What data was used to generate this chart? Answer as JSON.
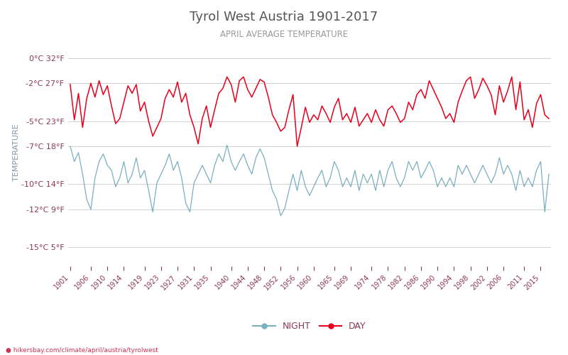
{
  "title": "Tyrol West Austria 1901-2017",
  "subtitle": "APRIL AVERAGE TEMPERATURE",
  "ylabel": "TEMPERATURE",
  "watermark": "hikersbay.com/climate/april/austria/tyrolwest",
  "year_start": 1901,
  "year_end": 2017,
  "ylim": [
    -16.5,
    1.5
  ],
  "yticks_c": [
    0,
    -2,
    -5,
    -7,
    -10,
    -12,
    -15
  ],
  "yticks_f": [
    32,
    27,
    23,
    18,
    14,
    9,
    5
  ],
  "xticks": [
    1901,
    1906,
    1910,
    1914,
    1919,
    1923,
    1927,
    1931,
    1935,
    1940,
    1944,
    1948,
    1952,
    1956,
    1960,
    1965,
    1969,
    1974,
    1978,
    1982,
    1986,
    1990,
    1994,
    1998,
    2002,
    2006,
    2011,
    2015
  ],
  "day_color": "#e8001c",
  "night_color": "#7aafc0",
  "grid_color": "#d0d0d0",
  "title_color": "#555555",
  "subtitle_color": "#999999",
  "label_color": "#8b3a52",
  "bg_color": "#ffffff",
  "day_data": [
    -2.1,
    -4.9,
    -2.8,
    -5.5,
    -3.2,
    -2.0,
    -3.1,
    -1.8,
    -2.9,
    -2.2,
    -3.8,
    -5.2,
    -4.8,
    -3.5,
    -2.2,
    -2.8,
    -2.1,
    -4.2,
    -3.5,
    -5.0,
    -6.2,
    -5.5,
    -4.8,
    -3.2,
    -2.5,
    -3.1,
    -1.9,
    -3.5,
    -2.8,
    -4.5,
    -5.5,
    -6.8,
    -4.8,
    -3.8,
    -5.5,
    -4.1,
    -2.8,
    -2.4,
    -1.5,
    -2.1,
    -3.5,
    -1.8,
    -1.5,
    -2.5,
    -3.1,
    -2.4,
    -1.7,
    -1.9,
    -3.1,
    -4.5,
    -5.1,
    -5.8,
    -5.5,
    -4.1,
    -2.9,
    -7.0,
    -5.5,
    -3.9,
    -5.1,
    -4.5,
    -4.9,
    -3.8,
    -4.4,
    -5.1,
    -3.9,
    -3.2,
    -4.9,
    -4.4,
    -5.1,
    -3.9,
    -5.4,
    -4.9,
    -4.4,
    -5.1,
    -4.1,
    -4.9,
    -5.4,
    -4.1,
    -3.8,
    -4.4,
    -5.1,
    -4.8,
    -3.5,
    -4.1,
    -2.9,
    -2.5,
    -3.2,
    -1.8,
    -2.5,
    -3.2,
    -3.9,
    -4.8,
    -4.4,
    -5.1,
    -3.5,
    -2.6,
    -1.8,
    -1.5,
    -3.2,
    -2.5,
    -1.6,
    -2.2,
    -2.9,
    -4.5,
    -2.2,
    -3.5,
    -2.6,
    -1.5,
    -4.1,
    -1.9,
    -4.9,
    -4.1,
    -5.5,
    -3.6,
    -2.9,
    -4.5,
    -4.8,
    -5.5
  ],
  "night_data": [
    -7.0,
    -8.2,
    -7.5,
    -9.2,
    -11.2,
    -12.0,
    -9.5,
    -8.2,
    -7.6,
    -8.5,
    -8.9,
    -10.2,
    -9.5,
    -8.2,
    -9.9,
    -9.2,
    -7.9,
    -9.5,
    -8.9,
    -10.5,
    -12.2,
    -9.9,
    -9.2,
    -8.5,
    -7.6,
    -8.9,
    -8.2,
    -9.5,
    -11.5,
    -12.2,
    -9.9,
    -9.2,
    -8.5,
    -9.2,
    -9.9,
    -8.5,
    -7.6,
    -8.2,
    -6.9,
    -8.2,
    -8.9,
    -8.2,
    -7.6,
    -8.5,
    -9.2,
    -7.9,
    -7.2,
    -7.9,
    -9.2,
    -10.5,
    -11.2,
    -12.5,
    -11.9,
    -10.5,
    -9.2,
    -10.5,
    -8.9,
    -10.2,
    -10.9,
    -10.2,
    -9.5,
    -8.9,
    -10.2,
    -9.5,
    -8.2,
    -8.9,
    -10.2,
    -9.5,
    -10.2,
    -8.9,
    -10.5,
    -9.2,
    -9.9,
    -9.2,
    -10.5,
    -8.9,
    -10.2,
    -8.9,
    -8.2,
    -9.5,
    -10.2,
    -9.5,
    -8.2,
    -8.9,
    -8.2,
    -9.5,
    -8.9,
    -8.2,
    -8.9,
    -10.2,
    -9.5,
    -10.2,
    -9.5,
    -10.2,
    -8.5,
    -9.2,
    -8.5,
    -9.2,
    -9.9,
    -9.2,
    -8.5,
    -9.2,
    -9.9,
    -9.2,
    -7.9,
    -9.2,
    -8.5,
    -9.2,
    -10.5,
    -8.9,
    -10.2,
    -9.5,
    -10.2,
    -8.9,
    -8.2,
    -12.2,
    -9.2,
    -9.9
  ]
}
